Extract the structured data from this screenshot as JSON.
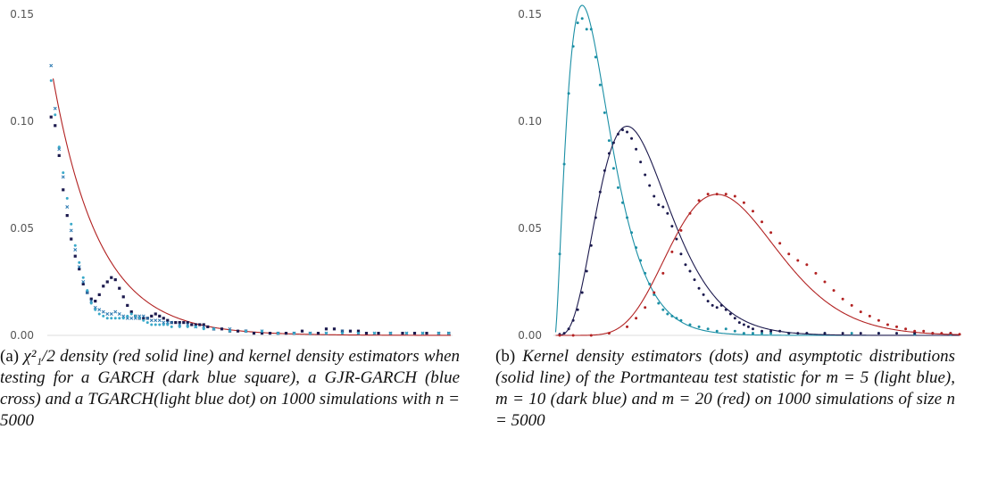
{
  "colors": {
    "dark_blue": "#1c1a4e",
    "blue": "#2a78b0",
    "light_blue": "#3aa9c9",
    "teal": "#1b8fa5",
    "red": "#b22222",
    "axis": "#dddddd"
  },
  "chart_data": [
    {
      "type": "scatter",
      "panel": "a",
      "xlim": [
        0,
        10
      ],
      "ylim": [
        0,
        0.15
      ],
      "yticks": [
        "0.00",
        "0.05",
        "0.10",
        "0.15"
      ],
      "yticks_values": [
        0,
        0.05,
        0.1,
        0.15
      ],
      "series": [
        {
          "role": "reference",
          "kind": "line",
          "color": "#b22222",
          "formula": "chi2_1/2 density"
        },
        {
          "role": "dots",
          "kind": "square",
          "color": "#1c1a4e",
          "x": [
            0.05,
            0.15,
            0.25,
            0.35,
            0.45,
            0.55,
            0.65,
            0.75,
            0.85,
            0.95,
            1.05,
            1.15,
            1.25,
            1.35,
            1.45,
            1.55,
            1.65,
            1.75,
            1.85,
            1.95,
            2.05,
            2.15,
            2.25,
            2.35,
            2.45,
            2.55,
            2.65,
            2.75,
            2.85,
            2.95,
            3.05,
            3.15,
            3.25,
            3.35,
            3.45,
            3.55,
            3.65,
            3.75,
            3.85,
            3.95,
            4.1,
            4.3,
            4.5,
            4.7,
            4.9,
            5.1,
            5.3,
            5.5,
            5.7,
            5.9,
            6.1,
            6.3,
            6.5,
            6.7,
            6.9,
            7.1,
            7.3,
            7.5,
            7.7,
            7.9,
            8.2,
            8.5,
            8.8,
            9.1,
            9.4,
            9.7,
            9.95
          ],
          "y": [
            0.102,
            0.098,
            0.084,
            0.068,
            0.056,
            0.045,
            0.037,
            0.031,
            0.024,
            0.02,
            0.017,
            0.016,
            0.019,
            0.023,
            0.025,
            0.027,
            0.026,
            0.022,
            0.018,
            0.014,
            0.011,
            0.009,
            0.008,
            0.008,
            0.008,
            0.009,
            0.01,
            0.009,
            0.008,
            0.007,
            0.006,
            0.006,
            0.006,
            0.006,
            0.006,
            0.005,
            0.005,
            0.005,
            0.005,
            0.004,
            0.003,
            0.003,
            0.002,
            0.002,
            0.002,
            0.001,
            0.001,
            0.001,
            0.001,
            0.001,
            0.001,
            0.002,
            0.001,
            0.001,
            0.003,
            0.003,
            0.002,
            0.002,
            0.002,
            0.001,
            0.001,
            0.001,
            0.001,
            0.001,
            0.001,
            0.001,
            0.001
          ]
        },
        {
          "role": "dots",
          "kind": "cross",
          "color": "#2a78b0",
          "x": [
            0.05,
            0.15,
            0.25,
            0.35,
            0.45,
            0.55,
            0.65,
            0.75,
            0.85,
            0.95,
            1.05,
            1.15,
            1.25,
            1.35,
            1.45,
            1.55,
            1.65,
            1.75,
            1.85,
            1.95,
            2.05,
            2.15,
            2.25,
            2.35,
            2.45,
            2.55,
            2.65,
            2.75,
            2.85,
            2.95,
            3.05,
            3.25,
            3.45,
            3.65,
            3.85,
            4.1,
            4.5,
            4.9,
            5.3,
            5.7,
            6.1,
            6.5,
            6.9,
            7.3,
            7.7,
            8.1,
            8.5,
            8.9,
            9.3,
            9.7,
            9.95
          ],
          "y": [
            0.126,
            0.106,
            0.087,
            0.074,
            0.06,
            0.049,
            0.04,
            0.032,
            0.025,
            0.02,
            0.016,
            0.013,
            0.012,
            0.011,
            0.01,
            0.01,
            0.011,
            0.01,
            0.009,
            0.008,
            0.008,
            0.008,
            0.009,
            0.009,
            0.008,
            0.007,
            0.007,
            0.007,
            0.006,
            0.006,
            0.006,
            0.005,
            0.005,
            0.004,
            0.004,
            0.003,
            0.003,
            0.002,
            0.002,
            0.001,
            0.001,
            0.001,
            0.001,
            0.002,
            0.001,
            0.001,
            0.001,
            0.001,
            0.001,
            0.001,
            0.001
          ]
        },
        {
          "role": "dots",
          "kind": "dot",
          "color": "#3aa9c9",
          "x": [
            0.05,
            0.15,
            0.25,
            0.35,
            0.45,
            0.55,
            0.65,
            0.75,
            0.85,
            0.95,
            1.05,
            1.15,
            1.25,
            1.35,
            1.45,
            1.55,
            1.65,
            1.75,
            1.85,
            1.95,
            2.05,
            2.15,
            2.25,
            2.35,
            2.45,
            2.55,
            2.65,
            2.75,
            2.85,
            2.95,
            3.05,
            3.25,
            3.45,
            3.65,
            3.85,
            4.1,
            4.5,
            4.9,
            5.3,
            5.7,
            6.1,
            6.5,
            6.9,
            7.3,
            7.7,
            8.1,
            8.5,
            8.9,
            9.3,
            9.7,
            9.95
          ],
          "y": [
            0.119,
            0.103,
            0.088,
            0.076,
            0.064,
            0.052,
            0.042,
            0.034,
            0.027,
            0.021,
            0.015,
            0.012,
            0.01,
            0.009,
            0.008,
            0.008,
            0.008,
            0.008,
            0.008,
            0.009,
            0.01,
            0.009,
            0.008,
            0.007,
            0.006,
            0.005,
            0.005,
            0.005,
            0.005,
            0.005,
            0.004,
            0.004,
            0.004,
            0.004,
            0.003,
            0.003,
            0.002,
            0.002,
            0.002,
            0.001,
            0.001,
            0.001,
            0.001,
            0.001,
            0.001,
            0.001,
            0.001,
            0.001,
            0.001,
            0.001,
            0.001
          ]
        }
      ]
    },
    {
      "type": "line",
      "panel": "b",
      "xlim": [
        0,
        45
      ],
      "ylim": [
        0,
        0.15
      ],
      "yticks": [
        "0.00",
        "0.05",
        "0.10",
        "0.15"
      ],
      "yticks_values": [
        0,
        0.05,
        0.1,
        0.15
      ],
      "series": [
        {
          "role": "reference",
          "kind": "line",
          "color": "#1b8fa5",
          "df": 5
        },
        {
          "role": "reference",
          "kind": "line",
          "color": "#1c1a4e",
          "df": 10
        },
        {
          "role": "reference",
          "kind": "line",
          "color": "#b22222",
          "df": 20
        },
        {
          "role": "dots",
          "kind": "dot",
          "color": "#1b8fa5",
          "x": [
            0.5,
            1,
            1.5,
            2,
            2.5,
            3,
            3.5,
            4,
            4.5,
            5,
            5.5,
            6,
            6.5,
            7,
            7.5,
            8,
            8.5,
            9,
            9.5,
            10,
            10.5,
            11,
            11.5,
            12,
            12.5,
            13,
            13.5,
            14,
            15,
            16,
            17,
            18,
            19,
            20,
            21,
            22,
            23,
            24,
            26,
            28,
            30,
            33,
            36,
            40,
            44
          ],
          "y": [
            0.038,
            0.08,
            0.113,
            0.135,
            0.146,
            0.148,
            0.143,
            0.143,
            0.13,
            0.117,
            0.104,
            0.091,
            0.078,
            0.069,
            0.062,
            0.055,
            0.048,
            0.041,
            0.035,
            0.029,
            0.024,
            0.019,
            0.015,
            0.012,
            0.01,
            0.009,
            0.008,
            0.007,
            0.005,
            0.004,
            0.003,
            0.002,
            0.003,
            0.002,
            0.001,
            0.001,
            0.001,
            0.001,
            0.001,
            0.001,
            0.001,
            0.001,
            0.001,
            0.0005,
            0.0005
          ]
        },
        {
          "role": "dots",
          "kind": "dot",
          "color": "#1c1a4e",
          "x": [
            0.5,
            1,
            1.5,
            2,
            2.5,
            3,
            3.5,
            4,
            4.5,
            5,
            5.5,
            6,
            6.5,
            7,
            7.5,
            8,
            8.5,
            9,
            9.5,
            10,
            10.5,
            11,
            11.5,
            12,
            12.5,
            13,
            13.5,
            14,
            14.5,
            15,
            15.5,
            16,
            16.5,
            17,
            17.5,
            18,
            18.5,
            19,
            19.5,
            20,
            20.5,
            21,
            21.5,
            22,
            23,
            24,
            25,
            26,
            27,
            28,
            30,
            32,
            34,
            36,
            38,
            40,
            42,
            44
          ],
          "y": [
            0.0005,
            0.001,
            0.003,
            0.007,
            0.012,
            0.02,
            0.03,
            0.042,
            0.055,
            0.067,
            0.077,
            0.085,
            0.09,
            0.094,
            0.096,
            0.095,
            0.092,
            0.087,
            0.081,
            0.075,
            0.07,
            0.065,
            0.061,
            0.06,
            0.057,
            0.051,
            0.045,
            0.038,
            0.033,
            0.03,
            0.026,
            0.022,
            0.019,
            0.016,
            0.014,
            0.013,
            0.014,
            0.012,
            0.01,
            0.008,
            0.006,
            0.005,
            0.004,
            0.003,
            0.002,
            0.002,
            0.002,
            0.001,
            0.001,
            0.001,
            0.001,
            0.001,
            0.001,
            0.001,
            0.001,
            0.001,
            0.001,
            0.001
          ]
        },
        {
          "role": "dots",
          "kind": "dot",
          "color": "#b22222",
          "x": [
            0.5,
            2,
            4,
            6,
            8,
            9,
            10,
            11,
            12,
            13,
            14,
            15,
            16,
            17,
            18,
            19,
            20,
            21,
            22,
            23,
            24,
            25,
            26,
            27,
            28,
            29,
            30,
            31,
            32,
            33,
            34,
            35,
            36,
            37,
            38,
            39,
            40,
            41,
            42,
            43,
            44,
            45
          ],
          "y": [
            0,
            0,
            0,
            0.001,
            0.004,
            0.008,
            0.013,
            0.02,
            0.029,
            0.039,
            0.049,
            0.057,
            0.063,
            0.066,
            0.066,
            0.066,
            0.065,
            0.062,
            0.058,
            0.053,
            0.048,
            0.043,
            0.038,
            0.035,
            0.033,
            0.029,
            0.025,
            0.021,
            0.017,
            0.014,
            0.011,
            0.009,
            0.007,
            0.005,
            0.004,
            0.003,
            0.002,
            0.002,
            0.001,
            0.001,
            0.001,
            0.0005
          ]
        }
      ]
    }
  ],
  "captions": {
    "a": {
      "label": "(a)",
      "text": "χ²₁/2 density (red solid line) and kernel density estimators when testing for a GARCH (dark blue square), a GJR-GARCH (blue cross) and a TGARCH(light blue dot) on 1000 simulations with n = 5000"
    },
    "b": {
      "label": "(b)",
      "text": "Kernel density estimators (dots) and asymptotic distributions (solid line) of the Portmanteau test statistic for m = 5 (light blue), m = 10 (dark blue) and m = 20 (red) on 1000 simulations of size n = 5000"
    }
  }
}
